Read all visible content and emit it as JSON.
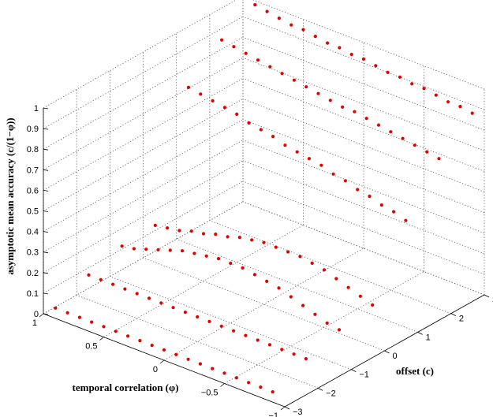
{
  "chart_data": {
    "type": "scatter3d",
    "title": "",
    "xlabel": "offset (c)",
    "ylabel": "temporal correlation (φ)",
    "zlabel": "asymptotic mean accuracy (c/(1−φ))",
    "xlim": [
      -3,
      3
    ],
    "ylim": [
      -1,
      1
    ],
    "zlim": [
      0,
      1
    ],
    "grid": true,
    "marker_color": "#e00000",
    "x_ticks": [
      "−3",
      "−2",
      "−1",
      "0",
      "1",
      "2",
      "3"
    ],
    "y_ticks": [
      "1",
      "0.5",
      "0",
      "−0.5",
      "−1"
    ],
    "z_ticks": [
      "0",
      "0.1",
      "0.2",
      "0.3",
      "0.4",
      "0.5",
      "0.6",
      "0.7",
      "0.8",
      "0.9",
      "1"
    ],
    "series": [
      {
        "c": -3,
        "phi": [
          -0.9,
          -0.8,
          -0.7,
          -0.6,
          -0.5,
          -0.4,
          -0.3,
          -0.2,
          -0.1,
          0,
          0.1,
          0.2,
          0.3,
          0.4,
          0.5,
          0.6,
          0.7,
          0.8,
          0.9
        ],
        "accuracy": [
          0.05,
          0.05,
          0.05,
          0.05,
          0.05,
          0.05,
          0.05,
          0.05,
          0.05,
          0.05,
          0.05,
          0.05,
          0.05,
          0.05,
          0.05,
          0.05,
          0.05,
          0.05,
          0.05
        ]
      },
      {
        "c": -2,
        "phi": [
          -0.9,
          -0.8,
          -0.7,
          -0.6,
          -0.5,
          -0.4,
          -0.3,
          -0.2,
          -0.1,
          0,
          0.1,
          0.2,
          0.3,
          0.4,
          0.5,
          0.6,
          0.7,
          0.8,
          0.9
        ],
        "accuracy": [
          0.12,
          0.12,
          0.12,
          0.12,
          0.12,
          0.12,
          0.12,
          0.12,
          0.12,
          0.12,
          0.12,
          0.12,
          0.12,
          0.12,
          0.12,
          0.12,
          0.12,
          0.12,
          0.12
        ]
      },
      {
        "c": -1,
        "phi": [
          -0.9,
          -0.8,
          -0.7,
          -0.6,
          -0.5,
          -0.4,
          -0.3,
          -0.2,
          -0.1,
          0,
          0.1,
          0.2,
          0.3,
          0.4,
          0.5,
          0.6,
          0.7,
          0.8,
          0.9
        ],
        "accuracy": [
          0.17,
          0.18,
          0.2,
          0.22,
          0.24,
          0.26,
          0.27,
          0.28,
          0.29,
          0.29,
          0.29,
          0.28,
          0.27,
          0.26,
          0.24,
          0.22,
          0.2,
          0.18,
          0.17
        ]
      },
      {
        "c": 0,
        "phi": [
          -0.9,
          -0.8,
          -0.7,
          -0.6,
          -0.5,
          -0.4,
          -0.3,
          -0.2,
          -0.1,
          0,
          0.1,
          0.2,
          0.3,
          0.4,
          0.5,
          0.6,
          0.7,
          0.8,
          0.9
        ],
        "accuracy": [
          0.2,
          0.22,
          0.24,
          0.26,
          0.28,
          0.29,
          0.3,
          0.3,
          0.3,
          0.3,
          0.29,
          0.28,
          0.26,
          0.25,
          0.23,
          0.22,
          0.2,
          0.19,
          0.18
        ]
      },
      {
        "c": 1,
        "phi": [
          -0.9,
          -0.8,
          -0.7,
          -0.6,
          -0.5,
          -0.4,
          -0.3,
          -0.2,
          -0.1,
          0,
          0.1,
          0.2,
          0.3,
          0.4,
          0.5,
          0.6,
          0.7,
          0.8,
          0.9
        ],
        "accuracy": [
          0.52,
          0.54,
          0.55,
          0.57,
          0.58,
          0.6,
          0.61,
          0.63,
          0.64,
          0.65,
          0.66,
          0.68,
          0.69,
          0.7,
          0.72,
          0.73,
          0.74,
          0.75,
          0.76
        ]
      },
      {
        "c": 2,
        "phi": [
          -0.9,
          -0.8,
          -0.7,
          -0.6,
          -0.5,
          -0.4,
          -0.3,
          -0.2,
          -0.1,
          0,
          0.1,
          0.2,
          0.3,
          0.4,
          0.5,
          0.6,
          0.7,
          0.8,
          0.9
        ],
        "accuracy": [
          0.73,
          0.74,
          0.75,
          0.76,
          0.77,
          0.78,
          0.79,
          0.8,
          0.8,
          0.81,
          0.82,
          0.83,
          0.84,
          0.85,
          0.86,
          0.87,
          0.88,
          0.89,
          0.9
        ]
      },
      {
        "c": 3,
        "phi": [
          -0.9,
          -0.8,
          -0.7,
          -0.6,
          -0.5,
          -0.4,
          -0.3,
          -0.2,
          -0.1,
          0,
          0.1,
          0.2,
          0.3,
          0.4,
          0.5,
          0.6,
          0.7,
          0.8,
          0.9
        ],
        "accuracy": [
          0.86,
          0.87,
          0.87,
          0.88,
          0.89,
          0.89,
          0.9,
          0.9,
          0.91,
          0.92,
          0.92,
          0.93,
          0.93,
          0.94,
          0.95,
          0.95,
          0.96,
          0.97,
          0.98
        ]
      }
    ]
  }
}
